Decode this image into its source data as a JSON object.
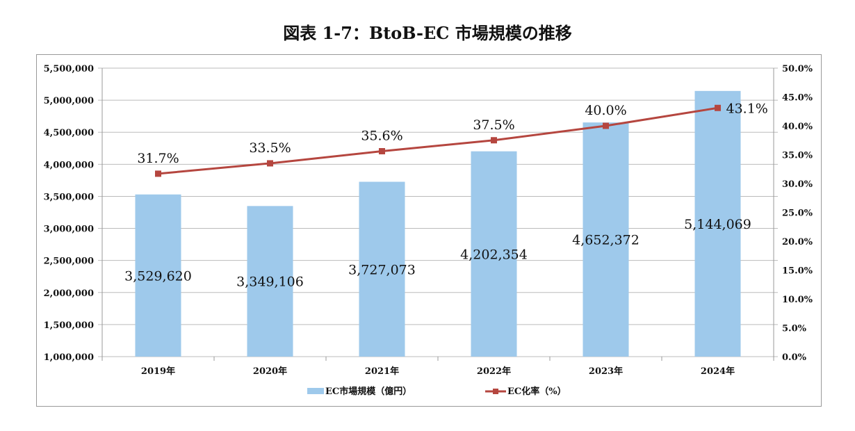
{
  "chart_data": {
    "type": "bar+line",
    "title": "図表 1-7：BtoB-EC 市場規模の推移",
    "categories": [
      "2019年",
      "2020年",
      "2021年",
      "2022年",
      "2023年",
      "2024年"
    ],
    "series": [
      {
        "name": "EC市場規模（億円）",
        "type": "bar",
        "axis": "left",
        "color": "#9EC9EB",
        "values": [
          3529620,
          3349106,
          3727073,
          4202354,
          4652372,
          5144069
        ],
        "labels": [
          "3,529,620",
          "3,349,106",
          "3,727,073",
          "4,202,354",
          "4,652,372",
          "5,144,069"
        ]
      },
      {
        "name": "EC化率（%）",
        "type": "line",
        "axis": "right",
        "color": "#B5463F",
        "values": [
          31.7,
          33.5,
          35.6,
          37.5,
          40.0,
          43.1
        ],
        "labels": [
          "31.7%",
          "33.5%",
          "35.6%",
          "37.5%",
          "40.0%",
          "43.1%"
        ]
      }
    ],
    "left_axis": {
      "ylim": [
        1000000,
        5500000
      ],
      "ticks": [
        "1,000,000",
        "1,500,000",
        "2,000,000",
        "2,500,000",
        "3,000,000",
        "3,500,000",
        "4,000,000",
        "4,500,000",
        "5,000,000",
        "5,500,000"
      ]
    },
    "right_axis": {
      "ylim": [
        0,
        50
      ],
      "ticks": [
        "0.0%",
        "5.0%",
        "10.0%",
        "15.0%",
        "20.0%",
        "25.0%",
        "30.0%",
        "35.0%",
        "40.0%",
        "45.0%",
        "50.0%"
      ]
    },
    "grid": true,
    "legend": "bottom"
  }
}
